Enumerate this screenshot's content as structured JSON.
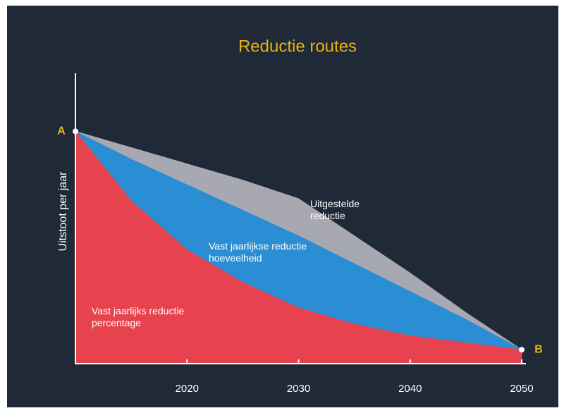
{
  "chart_data": {
    "type": "area",
    "title": "Reductie routes",
    "ylabel": "Uitstoot per jaar",
    "x": [
      2010,
      2015,
      2020,
      2025,
      2030,
      2035,
      2040,
      2045,
      2050
    ],
    "xlim": [
      2010,
      2050
    ],
    "xticks": [
      2020,
      2030,
      2040,
      2050
    ],
    "ylim": [
      0,
      125
    ],
    "series": [
      {
        "name": "Uitgestelde reductie",
        "color": "#a8a8b2",
        "values": [
          100,
          93,
          86,
          79,
          71,
          55,
          39,
          22,
          6
        ]
      },
      {
        "name": "Vast jaarlijkse reductie hoeveelheid",
        "color": "#2b8ed4",
        "values": [
          100,
          88,
          77,
          66,
          55,
          43,
          31,
          19,
          6
        ]
      },
      {
        "name": "Vast jaarlijks reductie percentage",
        "color": "#e6434e",
        "values": [
          100,
          70,
          49,
          35,
          24,
          17,
          12,
          9,
          6
        ]
      }
    ],
    "annotations": [
      "A",
      "B"
    ]
  }
}
